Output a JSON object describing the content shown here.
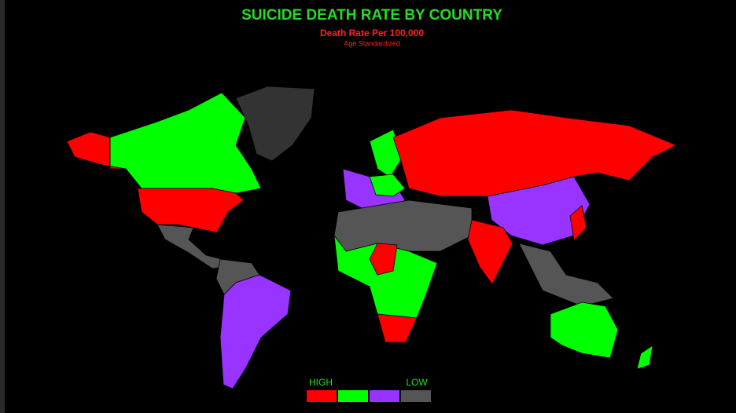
{
  "title": "SUICIDE DEATH RATE BY COUNTRY",
  "subtitle": "Death Rate Per 100,000",
  "note": "Age Standardized",
  "legend": {
    "high_label": "HIGH",
    "low_label": "LOW",
    "colors": [
      "#ff0000",
      "#00ff00",
      "#9933ff",
      "#555555"
    ]
  }
}
